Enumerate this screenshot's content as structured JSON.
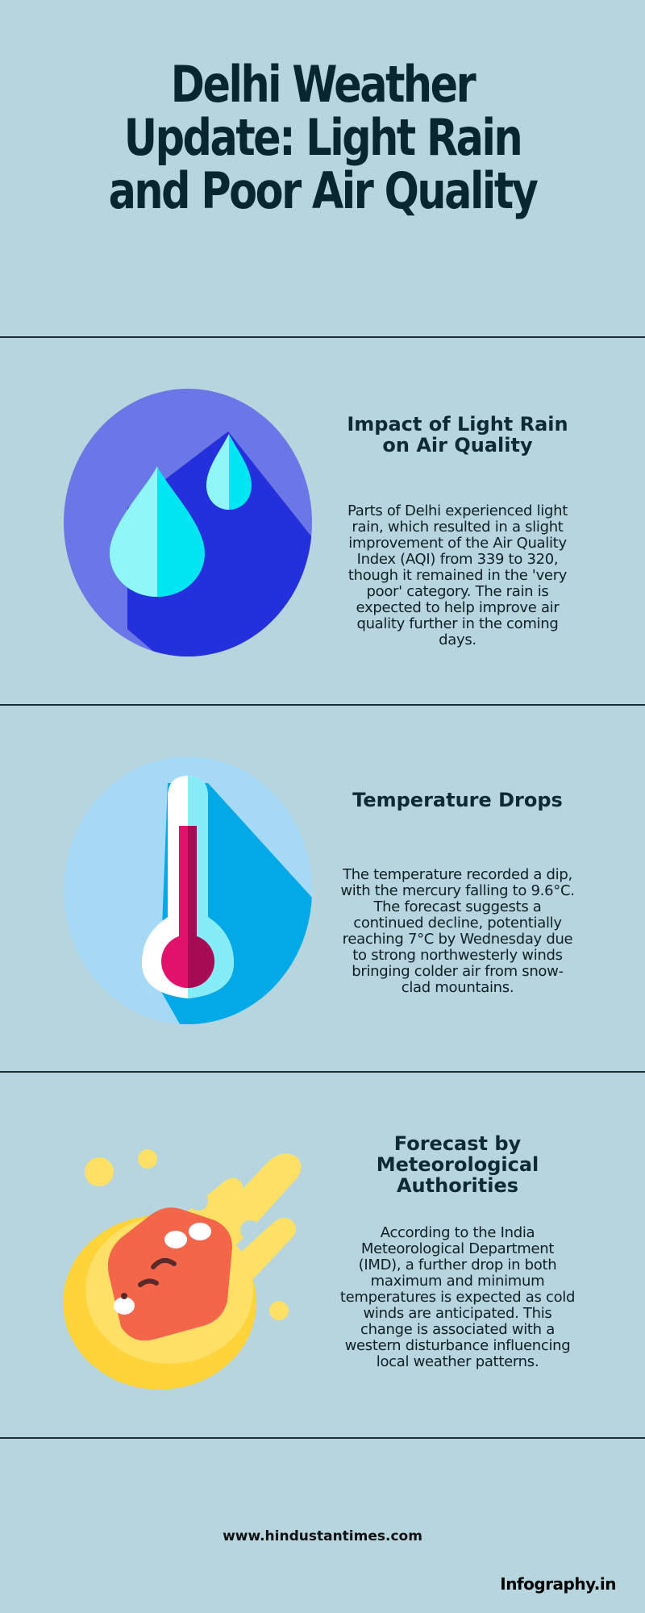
{
  "title": "Delhi Weather Update: Light Rain and Poor Air Quality",
  "sections": [
    {
      "icon": "rain-drops-icon",
      "heading": "Impact of Light Rain on Air Quality",
      "body": "Parts of Delhi experienced light rain, which resulted in a slight improvement of the Air Quality Index (AQI) from 339 to 320, though it remained in the 'very poor' category. The rain is expected to help improve air quality further in the coming days."
    },
    {
      "icon": "thermometer-icon",
      "heading": "Temperature Drops",
      "body": "The temperature recorded a dip, with the mercury falling to 9.6°C. The forecast suggests a continued decline, potentially reaching 7°C by Wednesday due to strong northwesterly winds bringing colder air from snow-clad mountains."
    },
    {
      "icon": "meteor-icon",
      "heading": "Forecast by Meteorological Authorities",
      "body": "According to the India Meteorological Department (IMD), a further drop in both maximum and minimum temperatures is expected as cold winds are anticipated. This change is associated with a western disturbance influencing local weather patterns."
    }
  ],
  "footer": {
    "source": "www.hindustantimes.com",
    "brand": "Infography.in"
  },
  "colors": {
    "background": "#b7d5de",
    "text_dark": "#0c2530",
    "divider": "#1c2f36"
  }
}
